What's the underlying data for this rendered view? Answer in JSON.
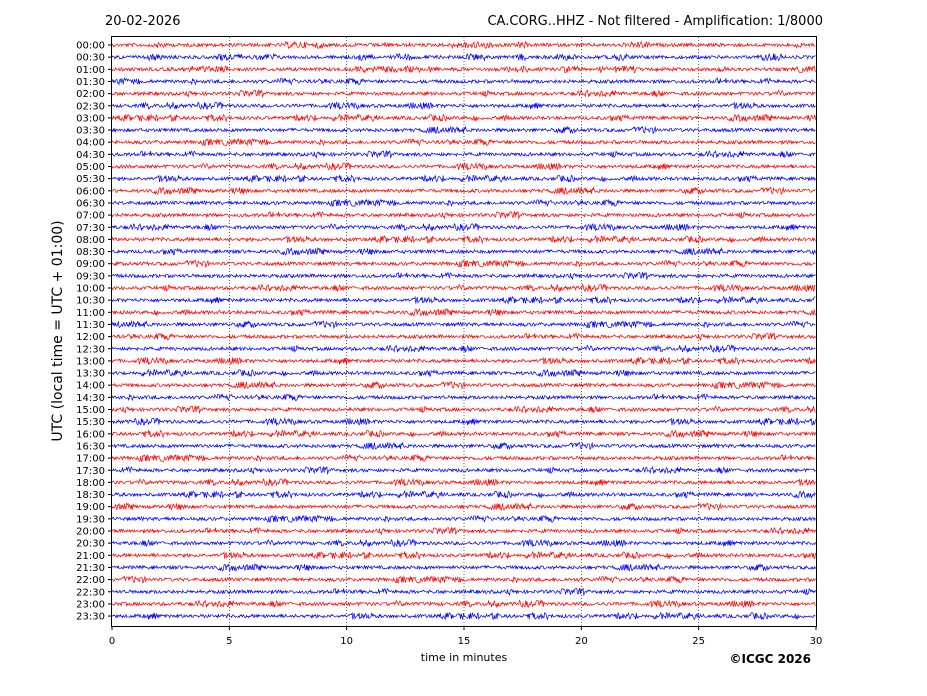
{
  "header": {
    "date": "20-02-2026",
    "station_title": "CA.CORG..HHZ - Not filtered - Amplification: 1/8000"
  },
  "copyright": "©ICGC 2026",
  "colors": {
    "trace_a": "#ff0000",
    "trace_b": "#0000ff",
    "axis": "#000000",
    "background": "#ffffff"
  },
  "chart_data": {
    "type": "line",
    "title": "CA.CORG..HHZ - Not filtered - Amplification: 1/8000",
    "xlabel": "time in minutes",
    "ylabel": "UTC (local time = UTC + 01:00)",
    "xlim": [
      0,
      30
    ],
    "x_ticks": [
      "0",
      "5",
      "10",
      "15",
      "20",
      "25",
      "30"
    ],
    "x_grid_at": [
      5,
      10,
      15,
      20,
      25
    ],
    "grid": true,
    "row_labels": [
      "00:00",
      "00:30",
      "01:00",
      "01:30",
      "02:00",
      "02:30",
      "03:00",
      "03:30",
      "04:00",
      "04:30",
      "05:00",
      "05:30",
      "06:00",
      "06:30",
      "07:00",
      "07:30",
      "08:00",
      "08:30",
      "09:00",
      "09:30",
      "10:00",
      "10:30",
      "11:00",
      "11:30",
      "12:00",
      "12:30",
      "13:00",
      "13:30",
      "14:00",
      "14:30",
      "15:00",
      "15:30",
      "16:00",
      "16:30",
      "17:00",
      "17:30",
      "18:00",
      "18:30",
      "19:00",
      "19:30",
      "20:00",
      "20:30",
      "21:00",
      "21:30",
      "22:00",
      "22:30",
      "23:00",
      "23:30"
    ],
    "row_color_cycle": [
      "#ff0000",
      "#0000ff"
    ],
    "trace_kind": "seismic noise, not filtered"
  }
}
